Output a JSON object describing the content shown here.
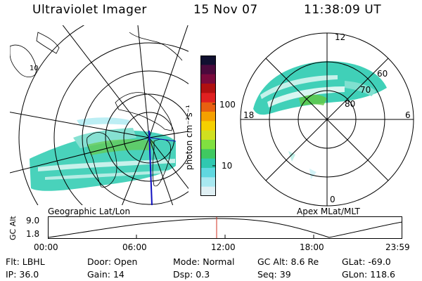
{
  "header": {
    "title": "Ultraviolet Imager",
    "date": "15 Nov 07",
    "time": "11:38:09 UT"
  },
  "colorbar": {
    "unit_label": "photon cm⁻²s⁻¹",
    "ticks": [
      "100",
      "10"
    ],
    "colors": [
      "#101030",
      "#4a0a3c",
      "#7a0a3c",
      "#b01010",
      "#e02020",
      "#e86010",
      "#f5a000",
      "#f5d000",
      "#d0e020",
      "#80e040",
      "#40c860",
      "#30c8b0",
      "#60d8e0",
      "#a8e8f0",
      "#e0f0f4"
    ]
  },
  "left_map": {
    "caption": "Geographic Lat/Lon",
    "corner_labels": [
      "10"
    ],
    "colors": {
      "aurora": "#40d0b8",
      "aurora_light": "#80e0d0",
      "aurora_green": "#60c840",
      "line": "#000000",
      "meridian": "#1010c0"
    }
  },
  "right_map": {
    "caption": "Apex MLat/MLT",
    "mlt_labels": {
      "top": "12",
      "left": "18",
      "right": "6",
      "bottom": "0"
    },
    "lat_labels": [
      "60",
      "70",
      "80"
    ]
  },
  "gc_plot": {
    "ylabel": "GC Alt",
    "y_ticks": [
      "9.0",
      "1.8"
    ],
    "x_ticks": [
      "00:00",
      "06:00",
      "12:00",
      "18:00",
      "23:59"
    ],
    "marker_color": "#d03020"
  },
  "footer": {
    "row1": [
      {
        "label": "Flt:",
        "value": "LBHL"
      },
      {
        "label": "Door:",
        "value": "Open"
      },
      {
        "label": "Mode:",
        "value": "Normal"
      },
      {
        "label": "GC Alt:",
        "value": "8.6 Re"
      },
      {
        "label": "GLat:",
        "value": "-69.0"
      }
    ],
    "row2": [
      {
        "label": "IP:",
        "value": "36.0"
      },
      {
        "label": "Gain:",
        "value": "14"
      },
      {
        "label": "Dsp:",
        "value": "0.3"
      },
      {
        "label": "Seq:",
        "value": "39"
      },
      {
        "label": "GLon:",
        "value": "118.6"
      }
    ]
  }
}
